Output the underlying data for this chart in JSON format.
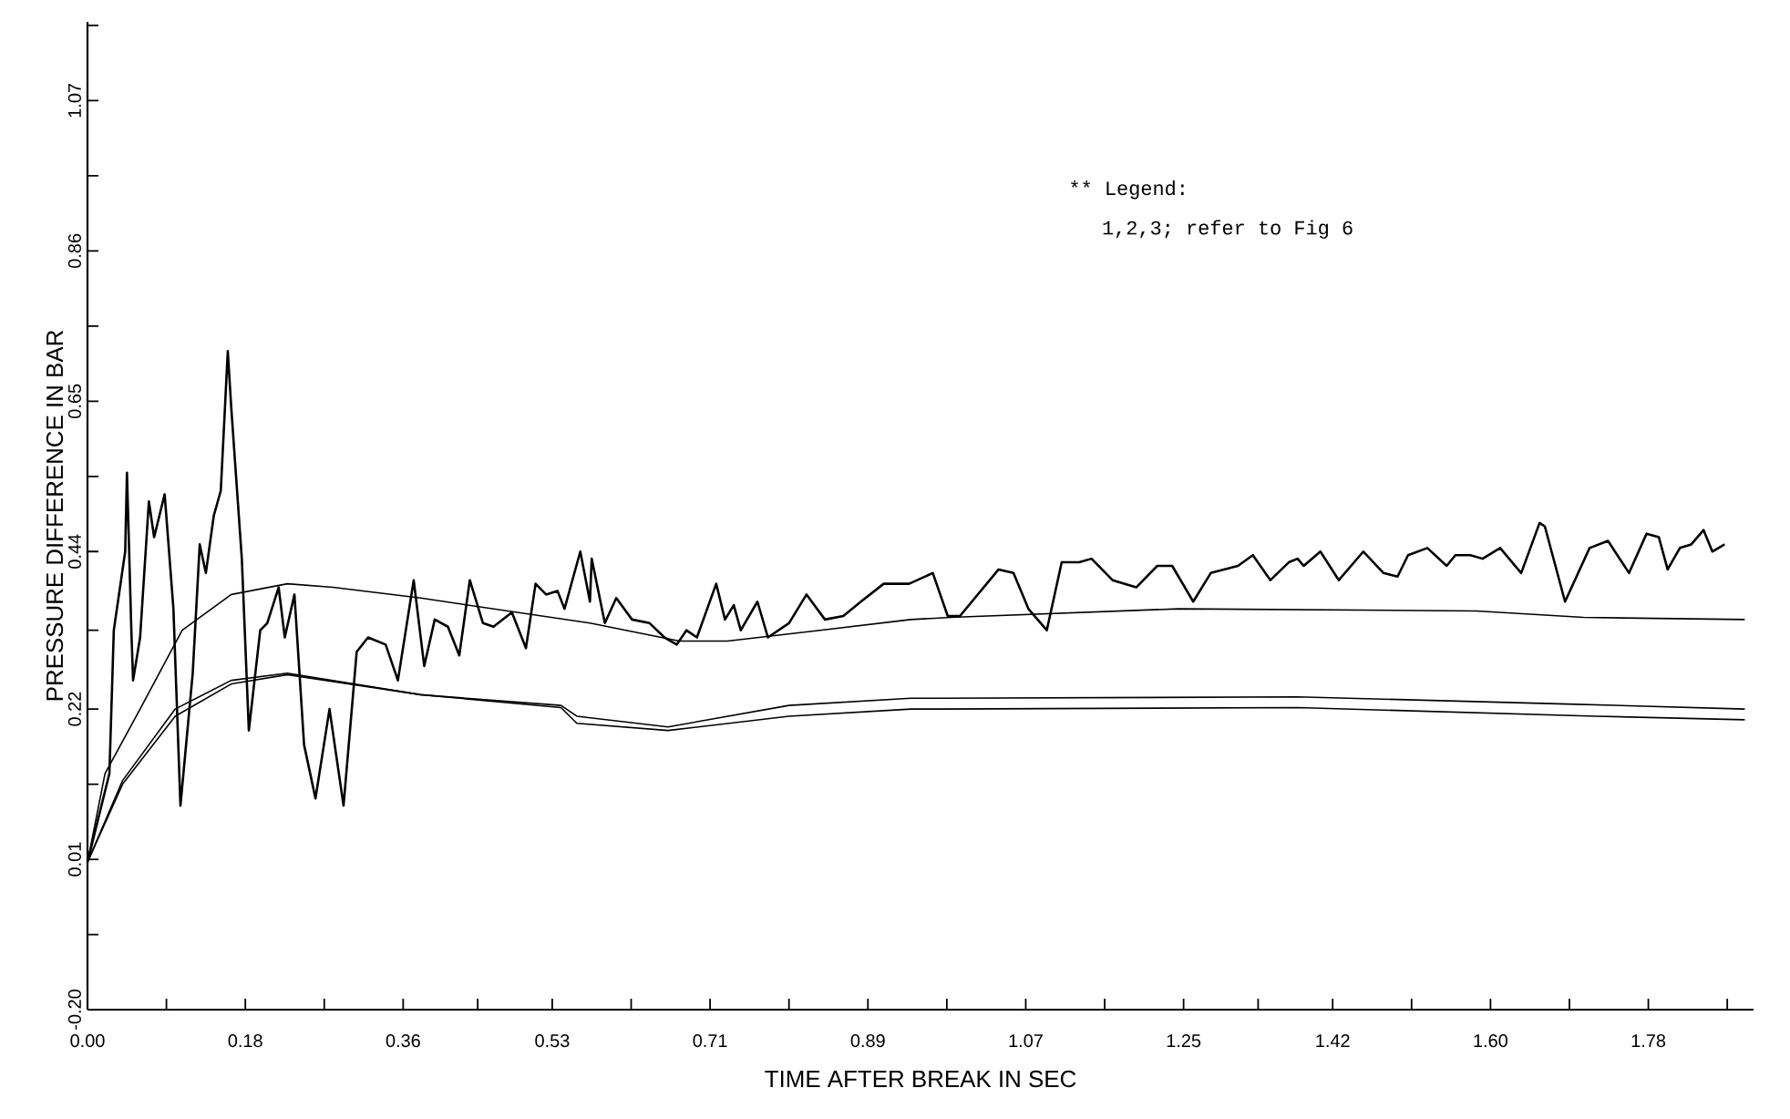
{
  "chart_data": {
    "type": "line",
    "xlabel": "TIME AFTER BREAK IN SEC",
    "ylabel": "PRESSURE DIFFERENCE IN BAR",
    "annotations": [
      "** Legend:",
      "1,2,3; refer to Fig 6"
    ],
    "xlim": [
      0,
      1.9
    ],
    "ylim": [
      -0.2,
      1.18
    ],
    "xticks": [
      {
        "value": 0,
        "label": "0.00"
      },
      {
        "value": 0.09,
        "label": null
      },
      {
        "value": 0.18,
        "label": "0.18"
      },
      {
        "value": 0.27,
        "label": null
      },
      {
        "value": 0.36,
        "label": "0.36"
      },
      {
        "value": 0.445,
        "label": null
      },
      {
        "value": 0.53,
        "label": "0.53"
      },
      {
        "value": 0.62,
        "label": null
      },
      {
        "value": 0.71,
        "label": "0.71"
      },
      {
        "value": 0.8,
        "label": null
      },
      {
        "value": 0.89,
        "label": "0.89"
      },
      {
        "value": 0.98,
        "label": null
      },
      {
        "value": 1.07,
        "label": "1.07"
      },
      {
        "value": 1.16,
        "label": null
      },
      {
        "value": 1.25,
        "label": "1.25"
      },
      {
        "value": 1.335,
        "label": null
      },
      {
        "value": 1.42,
        "label": "1.42"
      },
      {
        "value": 1.51,
        "label": null
      },
      {
        "value": 1.6,
        "label": "1.60"
      },
      {
        "value": 1.69,
        "label": null
      },
      {
        "value": 1.78,
        "label": "1.78"
      },
      {
        "value": 1.87,
        "label": null
      }
    ],
    "yticks": [
      {
        "value": -0.2,
        "label": "-0.20"
      },
      {
        "value": -0.095,
        "label": null
      },
      {
        "value": 0.01,
        "label": "0.01"
      },
      {
        "value": 0.115,
        "label": null
      },
      {
        "value": 0.22,
        "label": "0.22"
      },
      {
        "value": 0.33,
        "label": null
      },
      {
        "value": 0.44,
        "label": "0.44"
      },
      {
        "value": 0.545,
        "label": null
      },
      {
        "value": 0.65,
        "label": "0.65"
      },
      {
        "value": 0.755,
        "label": null
      },
      {
        "value": 0.86,
        "label": "0.86"
      },
      {
        "value": 0.965,
        "label": null
      },
      {
        "value": 1.07,
        "label": "1.07"
      },
      {
        "value": 1.175,
        "label": null
      }
    ],
    "grid": false,
    "marker": "none",
    "line_style": "solid",
    "series": [
      {
        "color": "#000000",
        "x": [
          0,
          0.025,
          0.03,
          0.043,
          0.045,
          0.05,
          0.052,
          0.06,
          0.07,
          0.076,
          0.088,
          0.098,
          0.106,
          0.12,
          0.128,
          0.135,
          0.144,
          0.152,
          0.16,
          0.164,
          0.176,
          0.184,
          0.197,
          0.205,
          0.218,
          0.225,
          0.236,
          0.247,
          0.26,
          0.276,
          0.292,
          0.307,
          0.32,
          0.34,
          0.354,
          0.372,
          0.384,
          0.396,
          0.411,
          0.424,
          0.436,
          0.451,
          0.463,
          0.484,
          0.5,
          0.511,
          0.523,
          0.536,
          0.544,
          0.562,
          0.573,
          0.575,
          0.59,
          0.603,
          0.621,
          0.641,
          0.658,
          0.672,
          0.683,
          0.695,
          0.717,
          0.727,
          0.737,
          0.745,
          0.764,
          0.776,
          0.8,
          0.82,
          0.841,
          0.862,
          0.882,
          0.908,
          0.937,
          0.964,
          0.981,
          0.995,
          1.039,
          1.056,
          1.073,
          1.094,
          1.111,
          1.131,
          1.145,
          1.169,
          1.196,
          1.22,
          1.237,
          1.261,
          1.281,
          1.312,
          1.329,
          1.349,
          1.37,
          1.38,
          1.387,
          1.406,
          1.427,
          1.455,
          1.478,
          1.494,
          1.506,
          1.528,
          1.55,
          1.56,
          1.577,
          1.591,
          1.611,
          1.635,
          1.656,
          1.662,
          1.685,
          1.713,
          1.734,
          1.758,
          1.778,
          1.792,
          1.802,
          1.816,
          1.829,
          1.843,
          1.853,
          1.867
        ],
        "values": [
          0.006,
          0.13,
          0.33,
          0.44,
          0.55,
          0.33,
          0.26,
          0.32,
          0.51,
          0.46,
          0.52,
          0.36,
          0.085,
          0.27,
          0.45,
          0.41,
          0.49,
          0.525,
          0.72,
          0.64,
          0.43,
          0.19,
          0.33,
          0.34,
          0.39,
          0.32,
          0.38,
          0.17,
          0.095,
          0.22,
          0.085,
          0.3,
          0.32,
          0.31,
          0.26,
          0.4,
          0.28,
          0.345,
          0.335,
          0.295,
          0.4,
          0.34,
          0.335,
          0.355,
          0.305,
          0.395,
          0.38,
          0.385,
          0.36,
          0.44,
          0.37,
          0.43,
          0.34,
          0.375,
          0.345,
          0.34,
          0.32,
          0.31,
          0.33,
          0.32,
          0.395,
          0.345,
          0.365,
          0.33,
          0.37,
          0.32,
          0.34,
          0.38,
          0.345,
          0.35,
          0.37,
          0.395,
          0.395,
          0.41,
          0.35,
          0.35,
          0.415,
          0.41,
          0.36,
          0.33,
          0.425,
          0.425,
          0.43,
          0.4,
          0.39,
          0.42,
          0.42,
          0.37,
          0.41,
          0.42,
          0.435,
          0.4,
          0.425,
          0.43,
          0.42,
          0.44,
          0.4,
          0.44,
          0.41,
          0.405,
          0.435,
          0.445,
          0.42,
          0.435,
          0.435,
          0.43,
          0.445,
          0.41,
          0.48,
          0.475,
          0.37,
          0.445,
          0.455,
          0.41,
          0.465,
          0.46,
          0.415,
          0.445,
          0.45,
          0.47,
          0.44,
          0.45
        ]
      },
      {
        "color": "#000000",
        "x": [
          0,
          0.02,
          0.06,
          0.108,
          0.164,
          0.228,
          0.28,
          0.38,
          0.573,
          0.675,
          0.73,
          0.835,
          0.939,
          0.985,
          1.244,
          1.584,
          1.706,
          1.89
        ],
        "values": [
          0.006,
          0.13,
          0.22,
          0.33,
          0.38,
          0.395,
          0.39,
          0.375,
          0.34,
          0.315,
          0.315,
          0.33,
          0.345,
          0.348,
          0.36,
          0.357,
          0.348,
          0.345
        ]
      },
      {
        "color": "#000000",
        "x": [
          0,
          0.04,
          0.1,
          0.164,
          0.228,
          0.38,
          0.54,
          0.558,
          0.662,
          0.8,
          0.939,
          0.971,
          1.38,
          1.687,
          1.89
        ],
        "values": [
          0.006,
          0.12,
          0.22,
          0.26,
          0.27,
          0.24,
          0.225,
          0.21,
          0.195,
          0.225,
          0.235,
          0.235,
          0.237,
          0.227,
          0.22
        ]
      },
      {
        "color": "#000000",
        "x": [
          0,
          0.04,
          0.1,
          0.164,
          0.228,
          0.38,
          0.54,
          0.558,
          0.662,
          0.8,
          0.939,
          0.971,
          1.38,
          1.72,
          1.89
        ],
        "values": [
          0.006,
          0.115,
          0.21,
          0.255,
          0.268,
          0.24,
          0.222,
          0.2,
          0.19,
          0.21,
          0.22,
          0.22,
          0.222,
          0.21,
          0.205
        ]
      }
    ]
  }
}
